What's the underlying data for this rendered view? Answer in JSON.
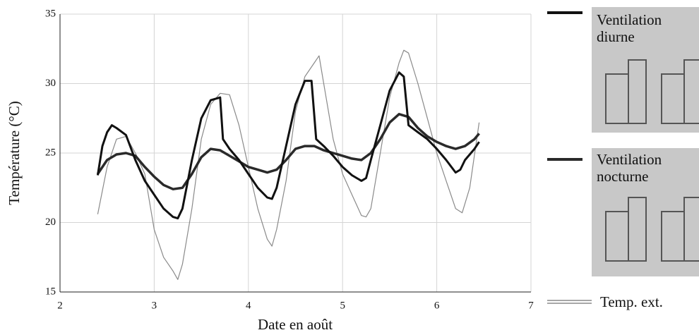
{
  "chart_data": {
    "type": "line",
    "xlabel": "Date en août",
    "ylabel": "Température (°C)",
    "xlim": [
      2,
      7
    ],
    "xticks": [
      2,
      3,
      4,
      5,
      6,
      7
    ],
    "ylim": [
      15,
      35
    ],
    "yticks": [
      15,
      20,
      25,
      30,
      35
    ],
    "grid": true,
    "legend": "right",
    "series": [
      {
        "name": "Ventilation diurne",
        "color": "#111111",
        "x": [
          2.4,
          2.45,
          2.5,
          2.55,
          2.6,
          2.7,
          2.8,
          2.9,
          3.0,
          3.1,
          3.2,
          3.25,
          3.3,
          3.4,
          3.5,
          3.6,
          3.7,
          3.73,
          3.8,
          3.9,
          4.0,
          4.1,
          4.2,
          4.25,
          4.3,
          4.4,
          4.5,
          4.6,
          4.67,
          4.72,
          4.8,
          4.9,
          5.0,
          5.1,
          5.2,
          5.25,
          5.3,
          5.4,
          5.5,
          5.6,
          5.65,
          5.7,
          5.8,
          5.9,
          6.0,
          6.1,
          6.2,
          6.25,
          6.3,
          6.4,
          6.45
        ],
        "values": [
          23.4,
          25.5,
          26.5,
          27,
          26.8,
          26.3,
          24.5,
          23,
          22,
          21,
          20.4,
          20.3,
          21,
          24.5,
          27.5,
          28.8,
          29,
          26,
          25.3,
          24.5,
          23.5,
          22.5,
          21.8,
          21.7,
          22.5,
          25.5,
          28.5,
          30.2,
          30.2,
          26,
          25.5,
          24.8,
          24,
          23.4,
          23,
          23.2,
          24.5,
          27,
          29.5,
          30.8,
          30.5,
          27,
          26.5,
          26,
          25.3,
          24.5,
          23.6,
          23.8,
          24.5,
          25.3,
          25.8
        ]
      },
      {
        "name": "Ventilation nocturne",
        "color": "#2a2a2a",
        "x": [
          2.4,
          2.5,
          2.6,
          2.7,
          2.8,
          2.9,
          3.0,
          3.1,
          3.2,
          3.3,
          3.4,
          3.5,
          3.6,
          3.7,
          3.8,
          3.9,
          4.0,
          4.1,
          4.2,
          4.3,
          4.4,
          4.5,
          4.6,
          4.7,
          4.8,
          4.9,
          5.0,
          5.1,
          5.2,
          5.3,
          5.4,
          5.5,
          5.6,
          5.7,
          5.8,
          5.9,
          6.0,
          6.1,
          6.2,
          6.3,
          6.4,
          6.45
        ],
        "values": [
          23.5,
          24.5,
          24.9,
          25,
          24.8,
          24,
          23.3,
          22.7,
          22.4,
          22.5,
          23.5,
          24.7,
          25.3,
          25.2,
          24.8,
          24.4,
          24,
          23.8,
          23.6,
          23.8,
          24.5,
          25.3,
          25.5,
          25.5,
          25.2,
          25,
          24.8,
          24.6,
          24.5,
          25,
          26,
          27.2,
          27.8,
          27.6,
          26.8,
          26.2,
          25.8,
          25.5,
          25.3,
          25.5,
          26,
          26.4
        ]
      },
      {
        "name": "Temp. ext.",
        "color": "#8a8a8a",
        "x": [
          2.4,
          2.5,
          2.6,
          2.7,
          2.8,
          2.9,
          3.0,
          3.1,
          3.2,
          3.25,
          3.3,
          3.4,
          3.5,
          3.6,
          3.7,
          3.8,
          3.9,
          4.0,
          4.1,
          4.2,
          4.25,
          4.3,
          4.4,
          4.5,
          4.6,
          4.7,
          4.75,
          4.8,
          4.9,
          5.0,
          5.1,
          5.2,
          5.25,
          5.3,
          5.4,
          5.5,
          5.6,
          5.65,
          5.7,
          5.8,
          5.9,
          6.0,
          6.1,
          6.2,
          6.27,
          6.35,
          6.45
        ],
        "values": [
          20.6,
          24,
          26,
          26.2,
          25,
          23.5,
          19.5,
          17.5,
          16.5,
          15.9,
          17,
          21,
          26,
          28.5,
          29.3,
          29.2,
          27,
          24,
          21,
          18.8,
          18.3,
          19.5,
          23,
          28,
          30.5,
          31.5,
          32,
          30,
          26,
          23.5,
          22,
          20.5,
          20.4,
          21,
          25,
          29,
          31.5,
          32.4,
          32.2,
          30,
          27.5,
          25,
          23,
          21,
          20.7,
          22.5,
          27.2
        ]
      }
    ]
  }
}
